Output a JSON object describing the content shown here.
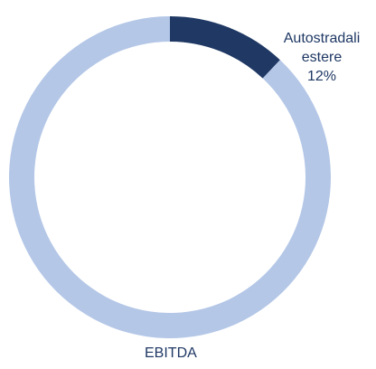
{
  "chart_data": {
    "type": "donut",
    "title": "EBITDA",
    "categories": [
      "Autostradali estere",
      null
    ],
    "values": [
      12,
      88
    ],
    "value_labels": [
      "12%",
      null
    ],
    "colors": [
      "#1f3864",
      "#b4c7e7"
    ]
  }
}
